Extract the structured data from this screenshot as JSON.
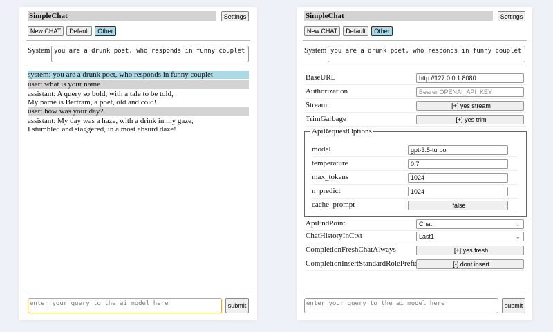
{
  "app_title": "SimpleChat",
  "settings_label": "Settings",
  "buttons": {
    "new_chat": "New CHAT",
    "default": "Default",
    "other": "Other"
  },
  "system_label": "System",
  "system_prompt": "you are a drunk poet, who responds in funny couplet",
  "chat": [
    {
      "role": "system",
      "text": "system: you are a drunk poet, who responds in funny couplet"
    },
    {
      "role": "user",
      "text": "user: what is your name"
    },
    {
      "role": "assistant",
      "text": "assistant: A query so bold, with a tale to be told,",
      "text2": "My name is Bertram, a poet, old and cold!"
    },
    {
      "role": "user",
      "text": "user: how was your day?"
    },
    {
      "role": "assistant",
      "text": "assistant: My day was a haze, with a drink in my gaze,",
      "text2": "I stumbled and staggered, in a most absurd daze!"
    }
  ],
  "query_placeholder": "enter your query to the ai model here",
  "submit_label": "submit",
  "settings": {
    "base_url": {
      "label": "BaseURL",
      "value": "http://127.0.0.1:8080"
    },
    "authorization": {
      "label": "Authorization",
      "placeholder": "Bearer OPENAI_API_KEY"
    },
    "stream": {
      "label": "Stream",
      "value": "[+] yes stream"
    },
    "trim": {
      "label": "TrimGarbage",
      "value": "[+] yes trim"
    },
    "api_options": {
      "legend": "ApiRequestOptions",
      "model": {
        "label": "model",
        "value": "gpt-3.5-turbo"
      },
      "temperature": {
        "label": "temperature",
        "value": "0.7"
      },
      "max_tokens": {
        "label": "max_tokens",
        "value": "1024"
      },
      "n_predict": {
        "label": "n_predict",
        "value": "1024"
      },
      "cache_prompt": {
        "label": "cache_prompt",
        "value": "false"
      }
    },
    "api_endpoint": {
      "label": "ApiEndPoint",
      "value": "Chat"
    },
    "chat_history": {
      "label": "ChatHistoryInCtxt",
      "value": "Last1"
    },
    "fresh": {
      "label": "CompletionFreshChatAlways",
      "value": "[+] yes fresh"
    },
    "insert_prefix": {
      "label": "CompletionInsertStandardRolePrefix",
      "value": "[-] dont insert"
    }
  },
  "colors": {
    "system_bg": "#add8e6",
    "user_bg": "#d3d3d3",
    "focus": "#e8a33c"
  }
}
